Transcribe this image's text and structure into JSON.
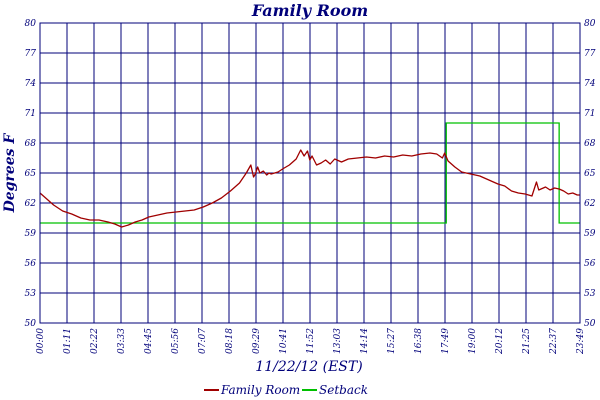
{
  "chart_data": {
    "type": "line",
    "title": "Family Room",
    "xlabel": "11/22/12 (EST)",
    "ylabel": "Degrees F",
    "y_ticks": [
      50,
      53,
      56,
      59,
      62,
      65,
      68,
      71,
      74,
      77,
      80
    ],
    "ylim": [
      50,
      80
    ],
    "x_ticks": [
      "00:00",
      "01:11",
      "02:22",
      "03:33",
      "04:45",
      "05:56",
      "07:07",
      "08:18",
      "09:29",
      "10:41",
      "11:52",
      "13:03",
      "14:14",
      "15:27",
      "16:38",
      "17:49",
      "19:00",
      "20:12",
      "21:25",
      "22:37",
      "23:49"
    ],
    "x_unit": "hours",
    "xlim": [
      0,
      23.82
    ],
    "grid": true,
    "legend_position": "bottom",
    "colors": {
      "frame": "#00007a",
      "family_room": "#a00000",
      "setback": "#00c000"
    },
    "series": [
      {
        "name": "Family Room",
        "x": [
          0.0,
          0.3,
          0.6,
          1.0,
          1.4,
          1.8,
          2.2,
          2.6,
          3.0,
          3.3,
          3.6,
          3.9,
          4.2,
          4.5,
          4.8,
          5.2,
          5.6,
          6.0,
          6.4,
          6.8,
          7.2,
          7.6,
          8.0,
          8.4,
          8.8,
          9.1,
          9.3,
          9.42,
          9.5,
          9.6,
          9.7,
          9.85,
          10.0,
          10.1,
          10.2,
          10.35,
          10.5,
          10.7,
          11.0,
          11.3,
          11.5,
          11.65,
          11.8,
          11.9,
          12.0,
          12.2,
          12.4,
          12.6,
          12.8,
          13.0,
          13.3,
          13.6,
          14.0,
          14.4,
          14.8,
          15.2,
          15.6,
          16.0,
          16.4,
          16.8,
          17.2,
          17.5,
          17.75,
          17.85,
          18.0,
          18.3,
          18.6,
          19.0,
          19.4,
          19.8,
          20.2,
          20.5,
          20.8,
          21.1,
          21.4,
          21.7,
          21.9,
          22.0,
          22.1,
          22.3,
          22.5,
          22.7,
          22.9,
          23.1,
          23.3,
          23.5,
          23.7,
          23.82
        ],
        "y": [
          63.0,
          62.4,
          61.8,
          61.2,
          60.9,
          60.5,
          60.3,
          60.3,
          60.1,
          59.9,
          59.6,
          59.8,
          60.1,
          60.3,
          60.6,
          60.8,
          61.0,
          61.1,
          61.2,
          61.3,
          61.6,
          62.0,
          62.5,
          63.2,
          64.0,
          65.0,
          65.8,
          64.6,
          64.9,
          65.6,
          65.0,
          65.2,
          64.8,
          65.0,
          64.9,
          65.0,
          65.1,
          65.4,
          65.8,
          66.4,
          67.3,
          66.7,
          67.2,
          66.3,
          66.7,
          65.8,
          66.0,
          66.3,
          65.9,
          66.4,
          66.1,
          66.4,
          66.5,
          66.6,
          66.5,
          66.7,
          66.6,
          66.8,
          66.7,
          66.9,
          67.0,
          66.9,
          66.5,
          67.0,
          66.2,
          65.6,
          65.1,
          64.9,
          64.7,
          64.3,
          63.9,
          63.7,
          63.2,
          63.0,
          62.9,
          62.7,
          64.1,
          63.3,
          63.4,
          63.6,
          63.3,
          63.5,
          63.4,
          63.2,
          62.9,
          63.0,
          62.8,
          62.8
        ]
      },
      {
        "name": "Setback",
        "x": [
          0.0,
          17.92,
          17.92,
          22.9,
          22.9,
          23.82
        ],
        "y": [
          60.0,
          60.0,
          70.0,
          70.0,
          60.0,
          60.0
        ]
      }
    ]
  }
}
